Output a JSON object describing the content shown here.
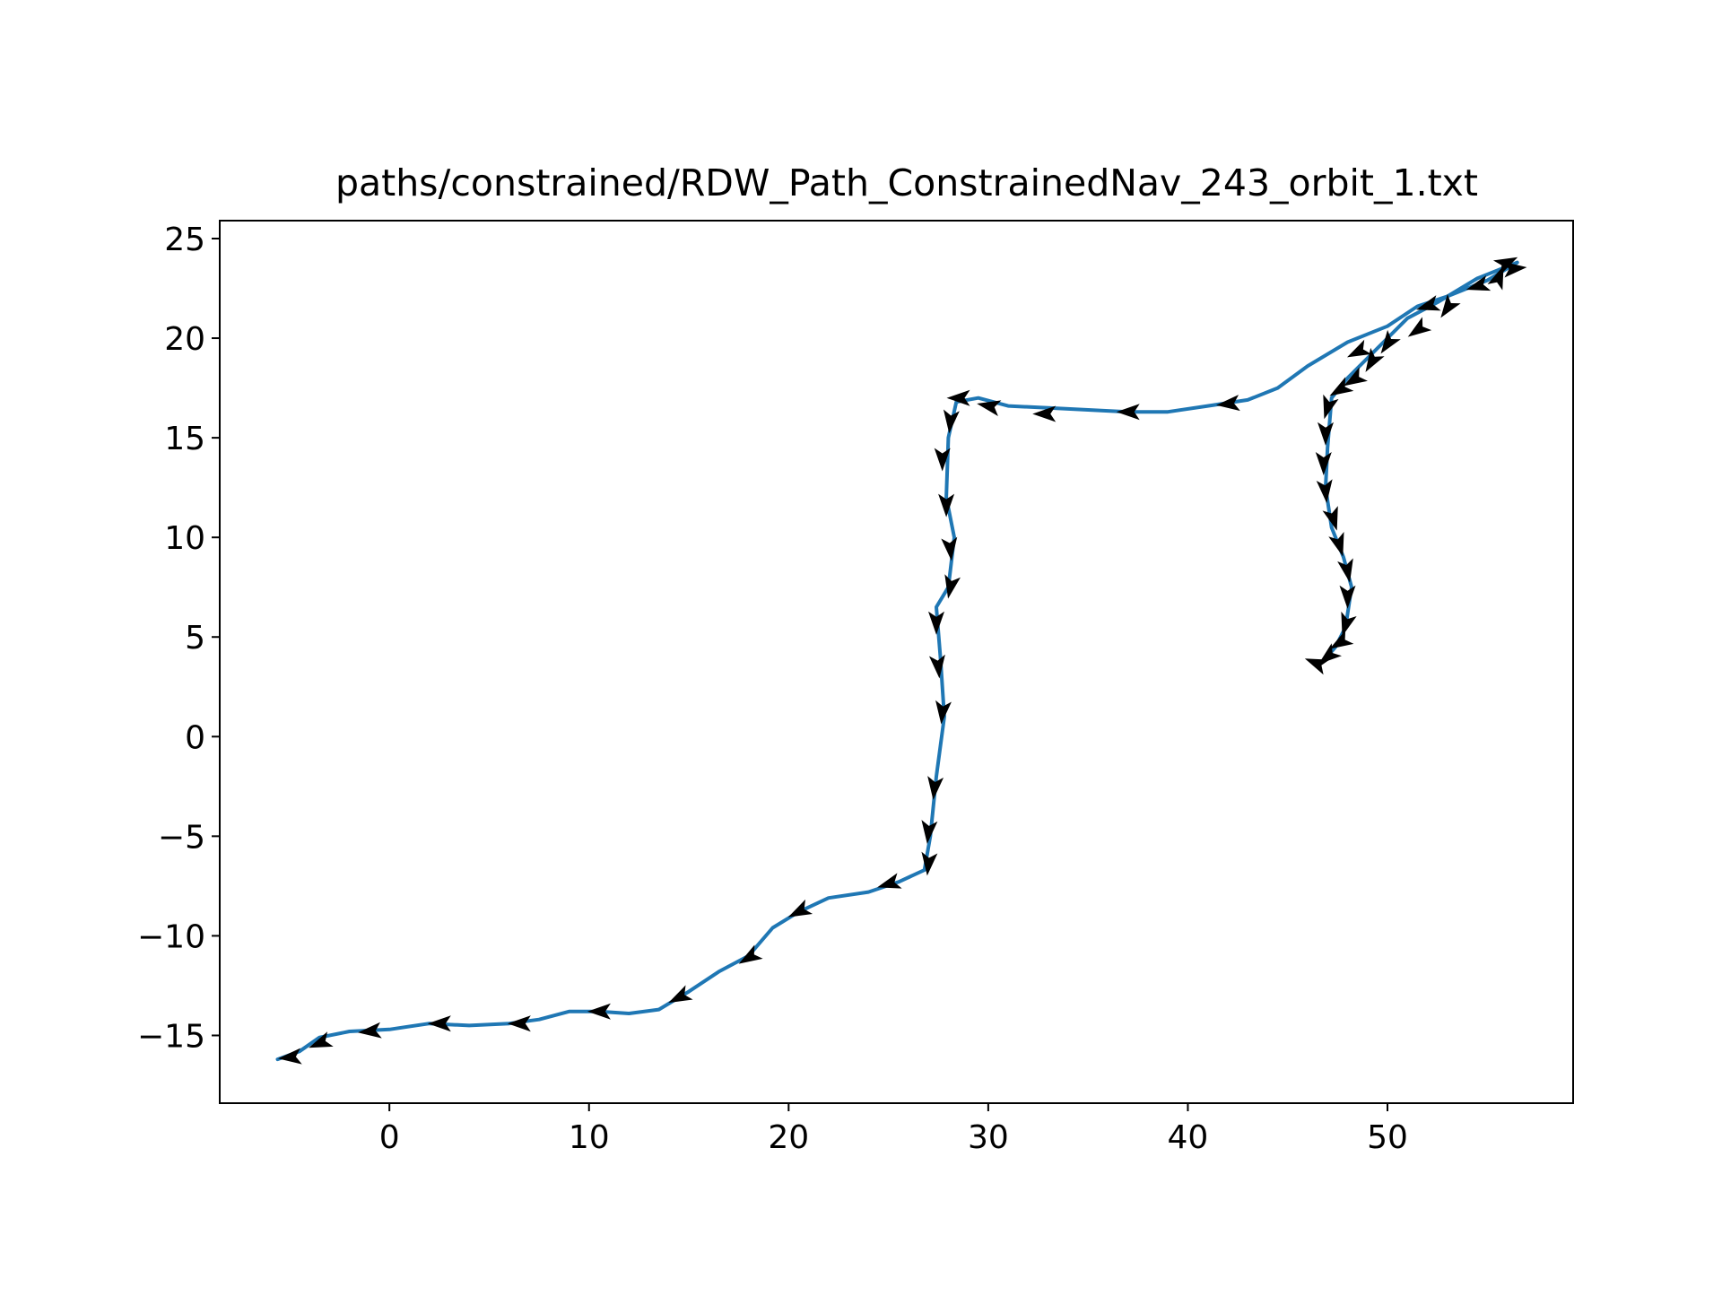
{
  "chart_data": {
    "type": "line",
    "title": "paths/constrained/RDW_Path_ConstrainedNav_243_orbit_1.txt",
    "xlabel": "",
    "ylabel": "",
    "xlim": [
      -8.5,
      59.3
    ],
    "ylim": [
      -18.4,
      25.9
    ],
    "xticks": [
      0,
      10,
      20,
      30,
      40,
      50
    ],
    "yticks": [
      -15,
      -10,
      -5,
      0,
      5,
      10,
      15,
      20,
      25
    ],
    "xtick_labels": [
      "0",
      "10",
      "20",
      "30",
      "40",
      "50"
    ],
    "ytick_labels": [
      "−15",
      "−10",
      "−5",
      "0",
      "5",
      "10",
      "15",
      "20",
      "25"
    ],
    "grid": false,
    "legend": "none",
    "line_color": "#1f77b4",
    "arrow_color": "#000000",
    "series": [
      {
        "x": [
          -5.6,
          -4.5,
          -3.5,
          -2.0,
          0.0,
          2.0,
          4.0,
          6.0,
          7.5,
          9.0,
          10.5,
          12.0,
          13.5,
          15.0,
          16.5,
          18.0,
          19.2,
          20.5,
          22.0,
          24.0,
          25.5,
          26.8,
          27.1,
          27.4,
          27.8,
          27.6,
          27.4,
          28.0,
          28.3,
          27.9,
          28.0,
          28.4,
          29.5,
          31.0,
          33.0,
          35.0,
          37.0,
          39.0,
          41.0,
          43.0,
          44.5,
          46.0,
          48.0,
          50.0,
          51.5,
          53.0,
          55.0,
          56.5,
          54.5,
          52.5,
          51.0,
          49.5,
          48.0,
          47.2,
          47.0,
          46.9,
          47.2,
          47.8,
          48.2,
          47.9,
          47.4,
          46.8,
          46.4
        ],
        "y": [
          -16.2,
          -15.8,
          -15.1,
          -14.8,
          -14.7,
          -14.4,
          -14.5,
          -14.4,
          -14.2,
          -13.8,
          -13.8,
          -13.9,
          -13.7,
          -12.8,
          -11.8,
          -11.0,
          -9.6,
          -8.8,
          -8.1,
          -7.8,
          -7.3,
          -6.7,
          -5.0,
          -2.0,
          1.0,
          4.0,
          6.5,
          7.5,
          10.0,
          12.0,
          15.0,
          16.8,
          17.0,
          16.6,
          16.5,
          16.4,
          16.3,
          16.3,
          16.6,
          16.9,
          17.5,
          18.6,
          19.8,
          20.6,
          21.6,
          22.1,
          22.9,
          23.8,
          23.0,
          21.8,
          21.0,
          19.5,
          18.0,
          17.0,
          14.5,
          12.5,
          10.5,
          9.0,
          7.5,
          5.5,
          4.5,
          3.8,
          3.6
        ]
      }
    ],
    "arrows": [
      {
        "x": -5.0,
        "y": -16.1,
        "dx": -1,
        "dy": -0.1
      },
      {
        "x": -3.5,
        "y": -15.4,
        "dx": -1,
        "dy": -0.4
      },
      {
        "x": -1.0,
        "y": -14.8,
        "dx": -1,
        "dy": -0.1
      },
      {
        "x": 2.5,
        "y": -14.4,
        "dx": -1,
        "dy": 0.0
      },
      {
        "x": 6.5,
        "y": -14.4,
        "dx": -1,
        "dy": 0.0
      },
      {
        "x": 10.5,
        "y": -13.8,
        "dx": -1,
        "dy": 0.0
      },
      {
        "x": 14.5,
        "y": -13.1,
        "dx": -1,
        "dy": -0.5
      },
      {
        "x": 18.0,
        "y": -11.1,
        "dx": -1,
        "dy": -0.6
      },
      {
        "x": 20.5,
        "y": -8.8,
        "dx": -1,
        "dy": -0.5
      },
      {
        "x": 25.0,
        "y": -7.4,
        "dx": -1,
        "dy": -0.3
      },
      {
        "x": 27.0,
        "y": -6.4,
        "dx": -0.1,
        "dy": -1
      },
      {
        "x": 27.0,
        "y": -4.8,
        "dx": -0.1,
        "dy": -1
      },
      {
        "x": 27.3,
        "y": -2.6,
        "dx": -0.1,
        "dy": -1
      },
      {
        "x": 27.7,
        "y": 1.2,
        "dx": -0.1,
        "dy": -1
      },
      {
        "x": 27.5,
        "y": 3.5,
        "dx": 0.1,
        "dy": -1
      },
      {
        "x": 27.4,
        "y": 5.7,
        "dx": 0.0,
        "dy": -1
      },
      {
        "x": 28.1,
        "y": 7.5,
        "dx": -0.2,
        "dy": -1
      },
      {
        "x": 28.1,
        "y": 9.4,
        "dx": 0.1,
        "dy": -1
      },
      {
        "x": 27.9,
        "y": 11.6,
        "dx": 0.0,
        "dy": -1
      },
      {
        "x": 27.7,
        "y": 13.9,
        "dx": 0.0,
        "dy": -1
      },
      {
        "x": 28.1,
        "y": 15.8,
        "dx": -0.1,
        "dy": -1
      },
      {
        "x": 28.5,
        "y": 17.0,
        "dx": -1,
        "dy": 0.0
      },
      {
        "x": 30.0,
        "y": 16.6,
        "dx": -1,
        "dy": 0.2
      },
      {
        "x": 32.8,
        "y": 16.2,
        "dx": -1,
        "dy": 0.0
      },
      {
        "x": 37.0,
        "y": 16.3,
        "dx": -1,
        "dy": 0.0
      },
      {
        "x": 42.0,
        "y": 16.7,
        "dx": -1,
        "dy": -0.1
      },
      {
        "x": 48.5,
        "y": 19.3,
        "dx": -1,
        "dy": -0.5
      },
      {
        "x": 52.0,
        "y": 21.6,
        "dx": -1,
        "dy": -0.3
      },
      {
        "x": 54.5,
        "y": 22.6,
        "dx": -1,
        "dy": -0.3
      },
      {
        "x": 56.4,
        "y": 23.5,
        "dx": 1,
        "dy": 0.1
      },
      {
        "x": 56.0,
        "y": 23.8,
        "dx": 1,
        "dy": 0.5
      },
      {
        "x": 55.6,
        "y": 23.1,
        "dx": 0.4,
        "dy": 1
      },
      {
        "x": 53.0,
        "y": 21.5,
        "dx": -0.7,
        "dy": -1
      },
      {
        "x": 51.5,
        "y": 20.4,
        "dx": -1,
        "dy": -0.7
      },
      {
        "x": 50.0,
        "y": 19.7,
        "dx": -0.7,
        "dy": -1
      },
      {
        "x": 49.2,
        "y": 18.8,
        "dx": -0.6,
        "dy": -1
      },
      {
        "x": 48.3,
        "y": 17.9,
        "dx": -1,
        "dy": -0.6
      },
      {
        "x": 47.6,
        "y": 17.4,
        "dx": -1,
        "dy": -0.6
      },
      {
        "x": 47.0,
        "y": 16.5,
        "dx": -0.3,
        "dy": -1
      },
      {
        "x": 46.9,
        "y": 15.2,
        "dx": 0.0,
        "dy": -1
      },
      {
        "x": 46.8,
        "y": 13.7,
        "dx": 0.0,
        "dy": -1
      },
      {
        "x": 46.9,
        "y": 12.3,
        "dx": 0.1,
        "dy": -1
      },
      {
        "x": 47.3,
        "y": 10.9,
        "dx": 0.3,
        "dy": -1
      },
      {
        "x": 47.6,
        "y": 9.6,
        "dx": 0.3,
        "dy": -1
      },
      {
        "x": 48.0,
        "y": 8.3,
        "dx": 0.2,
        "dy": -1
      },
      {
        "x": 48.0,
        "y": 7.0,
        "dx": 0.0,
        "dy": -1
      },
      {
        "x": 47.9,
        "y": 5.6,
        "dx": -0.3,
        "dy": -1
      },
      {
        "x": 47.6,
        "y": 4.7,
        "dx": -1,
        "dy": -0.6
      },
      {
        "x": 47.0,
        "y": 4.0,
        "dx": -1,
        "dy": -0.8
      },
      {
        "x": 46.4,
        "y": 3.7,
        "dx": -1,
        "dy": 0.4
      }
    ]
  }
}
